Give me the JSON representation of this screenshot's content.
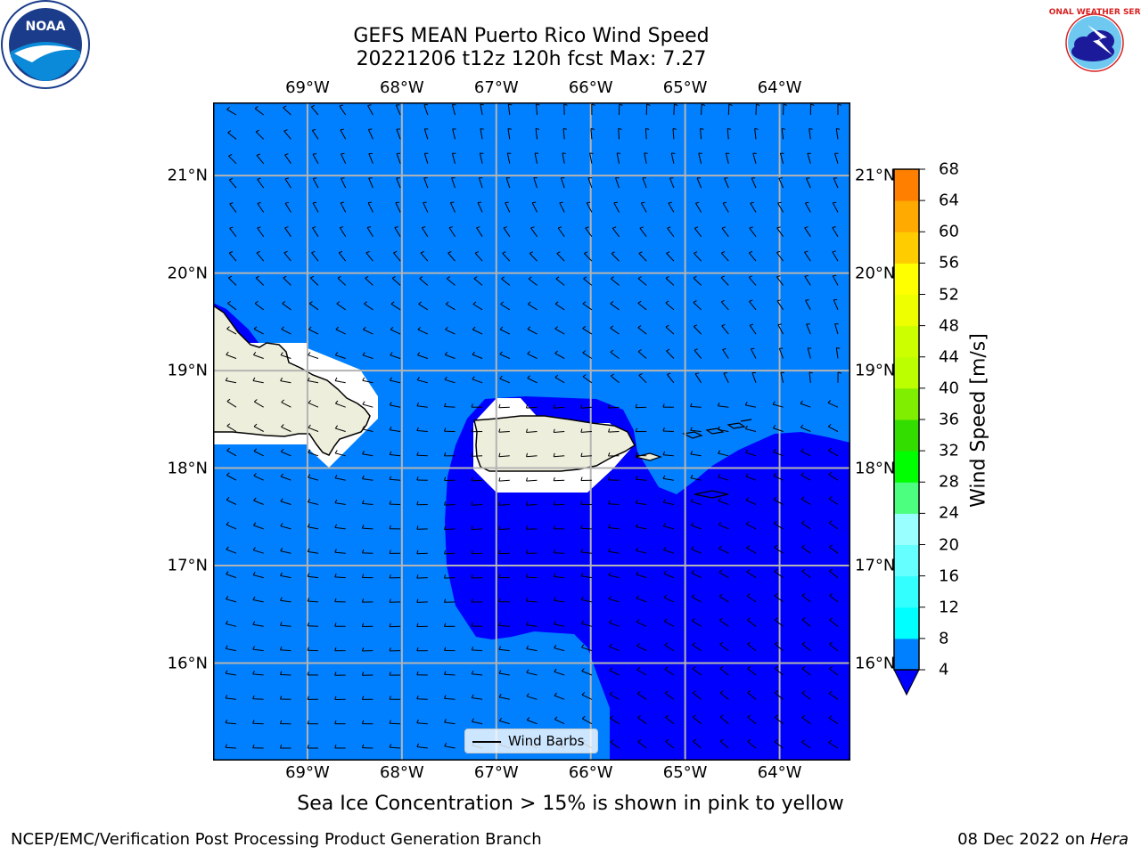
{
  "title": {
    "line1": "GEFS MEAN Puerto Rico Wind Speed",
    "line2": "20221206 t12z 120h fcst   Max: 7.27"
  },
  "logos": {
    "noaa": {
      "text": "NOAA",
      "ring_text": "NATIONAL OCEANIC AND ATMOSPHERIC ADMINISTRATION · U.S. DEPARTMENT OF COMMERCE"
    },
    "nws": {
      "ring_text": "NATIONAL WEATHER SERVICE"
    }
  },
  "map": {
    "lon_labels": [
      "69°W",
      "68°W",
      "67°W",
      "66°W",
      "65°W",
      "64°W"
    ],
    "lon_values": [
      -69,
      -68,
      -67,
      -66,
      -65,
      -64
    ],
    "lat_labels": [
      "21°N",
      "20°N",
      "19°N",
      "18°N",
      "17°N",
      "16°N"
    ],
    "lat_values": [
      21,
      20,
      19,
      18,
      17,
      16
    ],
    "extent": {
      "lon_min": -70,
      "lon_max": -63.25,
      "lat_min": 15,
      "lat_max": 21.75
    },
    "colors": {
      "ocean_4_8": "#0080ff",
      "ocean_below_4": "#0000ff",
      "land": "#eeeedc",
      "grid": "#b4b4b4"
    }
  },
  "colorbar": {
    "label": "Wind Speed [m/s]",
    "ticks": [
      "68",
      "64",
      "60",
      "56",
      "52",
      "48",
      "44",
      "40",
      "36",
      "32",
      "28",
      "24",
      "20",
      "16",
      "12",
      "8",
      "4"
    ],
    "levels": [
      4,
      8,
      12,
      16,
      20,
      24,
      28,
      32,
      36,
      40,
      44,
      48,
      52,
      56,
      60,
      64,
      68
    ],
    "colors": [
      "#0080ff",
      "#00ffff",
      "#33ffff",
      "#66ffff",
      "#99ffff",
      "#4cff7f",
      "#00ff00",
      "#33dd00",
      "#7fee00",
      "#bbff00",
      "#ccff00",
      "#eeff00",
      "#ffff00",
      "#ffcc00",
      "#ffaa00",
      "#ff8000",
      "#ff6000",
      "#ff3000",
      "#ff0000"
    ],
    "under_color": "#0000ff"
  },
  "legend": {
    "label": "Wind Barbs"
  },
  "note": "Sea Ice Concentration > 15% is shown in pink to yellow",
  "footer": {
    "left": "NCEP/EMC/Verification Post Processing Product Generation Branch",
    "right_date": "08 Dec 2022 on ",
    "right_machine": "Hera"
  }
}
